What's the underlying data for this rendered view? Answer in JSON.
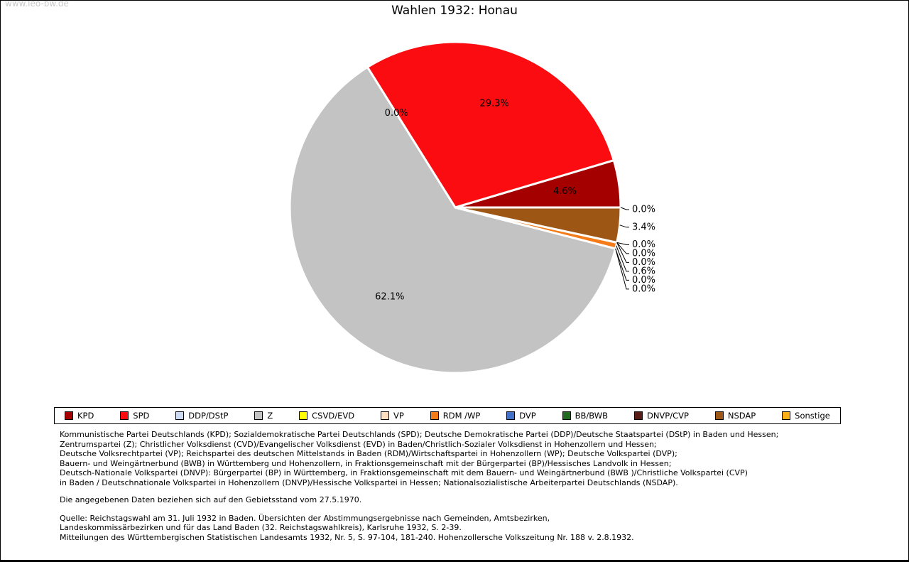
{
  "page": {
    "watermark": "www.leo-bw.de",
    "title": "Wahlen 1932: Honau"
  },
  "chart_data": {
    "type": "pie",
    "title": "Wahlen 1932: Honau",
    "value_unit": "percent",
    "start_angle_deg": 0,
    "direction": "counterclockwise",
    "legend_position": "bottom",
    "slices": [
      {
        "label": "KPD",
        "value": 4.6,
        "color": "#a40000"
      },
      {
        "label": "SPD",
        "value": 29.3,
        "color": "#fa0c10"
      },
      {
        "label": "DDP/DStP",
        "value": 0.0,
        "color": "#ccdaf3"
      },
      {
        "label": "Z",
        "value": 62.1,
        "color": "#c3c3c3"
      },
      {
        "label": "CSVD/EVD",
        "value": 0.0,
        "color": "#ffff00"
      },
      {
        "label": "VP",
        "value": 0.0,
        "color": "#ffdfbf"
      },
      {
        "label": "RDM /WP",
        "value": 0.6,
        "color": "#f47b17"
      },
      {
        "label": "DVP",
        "value": 0.0,
        "color": "#4070c8"
      },
      {
        "label": "BB/BWB",
        "value": 0.0,
        "color": "#206b20"
      },
      {
        "label": "DNVP/CVP",
        "value": 0.0,
        "color": "#5a1a16"
      },
      {
        "label": "NSDAP",
        "value": 3.4,
        "color": "#9d5614"
      },
      {
        "label": "Sonstige",
        "value": 0.0,
        "color": "#fbb117"
      }
    ]
  },
  "notes": {
    "party_note_lines": [
      "Kommunistische Partei Deutschlands (KPD); Sozialdemokratische Partei Deutschlands (SPD); Deutsche Demokratische Partei (DDP)/Deutsche Staatspartei (DStP) in Baden und Hessen;",
      "Zentrumspartei (Z); Christlicher Volksdienst (CVD)/Evangelischer Volksdienst (EVD) in Baden/Christlich-Sozialer Volksdienst in Hohenzollern und Hessen;",
      "Deutsche Volksrechtpartei (VP); Reichspartei des deutschen Mittelstands in Baden (RDM)/Wirtschaftspartei in Hohenzollern (WP); Deutsche Volkspartei (DVP);",
      "Bauern- und Weingärtnerbund (BWB) in Württemberg und Hohenzollern, in Fraktionsgemeinschaft mit der Bürgerpartei (BP)/Hessisches Landvolk in Hessen;",
      "Deutsch-Nationale Volkspartei (DNVP): Bürgerpartei (BP) in Württemberg, in Fraktionsgemeinschaft mit dem Bauern- und Weingärtnerbund (BWB )/Christliche Volkspartei (CVP)",
      "in Baden / Deutschnationale Volkspartei in Hohenzollern (DNVP)/Hessische Volkspartei in Hessen; Nationalsozialistische Arbeiterpartei Deutschlands (NSDAP)."
    ],
    "geo_note": "Die angegebenen Daten beziehen sich auf den Gebietsstand vom 27.5.1970.",
    "source_lines": [
      "Quelle: Reichstagswahl am 31. Juli 1932 in Baden. Übersichten der Abstimmungsergebnisse nach Gemeinden, Amtsbezirken,",
      "Landeskommissärbezirken und für das Land Baden (32. Reichstagswahlkreis), Karlsruhe 1932, S. 2-39.",
      "Mitteilungen des Württembergischen Statistischen Landesamts 1932, Nr. 5, S. 97-104, 181-240. Hohenzollersche Volkszeitung Nr. 188 v. 2.8.1932."
    ]
  }
}
